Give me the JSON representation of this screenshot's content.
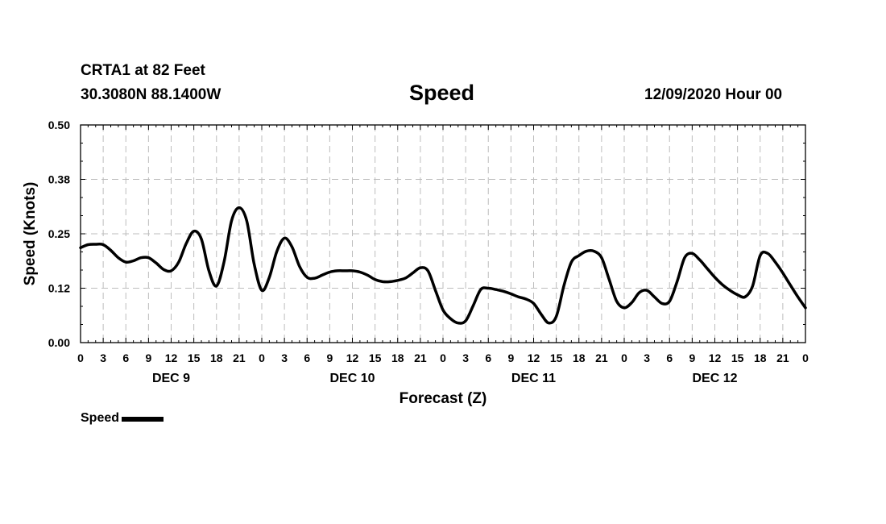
{
  "header": {
    "station": "CRTA1 at 82 Feet",
    "coords": "30.3080N 88.1400W",
    "issued": "12/09/2020 Hour 00"
  },
  "legend": {
    "label": "Speed",
    "color": "#000000"
  },
  "chart_data": {
    "type": "line",
    "title": "Speed",
    "xlabel": "Forecast (Z)",
    "ylabel": "Speed (Knots)",
    "ylim": [
      0,
      0.5
    ],
    "yticks": [
      "0.00",
      "0.12",
      "0.25",
      "0.38",
      "0.50"
    ],
    "xlim": [
      0,
      96
    ],
    "xtick_labels": [
      "0",
      "3",
      "6",
      "9",
      "12",
      "15",
      "18",
      "21",
      "0",
      "3",
      "6",
      "9",
      "12",
      "15",
      "18",
      "21",
      "0",
      "3",
      "6",
      "9",
      "12",
      "15",
      "18",
      "21",
      "0",
      "3",
      "6",
      "9",
      "12",
      "15",
      "18",
      "21",
      "0"
    ],
    "day_labels": [
      {
        "label": "DEC 9",
        "hour": 12
      },
      {
        "label": "DEC 10",
        "hour": 36
      },
      {
        "label": "DEC 11",
        "hour": 60
      },
      {
        "label": "DEC 12",
        "hour": 84
      }
    ],
    "grid": true,
    "series": [
      {
        "name": "Speed",
        "x": [
          0,
          1,
          2,
          3,
          4,
          5,
          6,
          7,
          8,
          9,
          10,
          11,
          12,
          13,
          14,
          15,
          16,
          17,
          18,
          19,
          20,
          21,
          22,
          23,
          24,
          25,
          26,
          27,
          28,
          29,
          30,
          31,
          32,
          33,
          34,
          35,
          36,
          37,
          38,
          39,
          40,
          41,
          42,
          43,
          44,
          45,
          46,
          47,
          48,
          49,
          50,
          51,
          52,
          53,
          54,
          55,
          56,
          57,
          58,
          59,
          60,
          61,
          62,
          63,
          64,
          65,
          66,
          67,
          68,
          69,
          70,
          71,
          72,
          73,
          74,
          75,
          76,
          77,
          78,
          79,
          80,
          81,
          82,
          83,
          84,
          85,
          86,
          87,
          88,
          89,
          90,
          91,
          92,
          93,
          94,
          95,
          96
        ],
        "values": [
          0.218,
          0.225,
          0.226,
          0.225,
          0.212,
          0.195,
          0.185,
          0.188,
          0.195,
          0.195,
          0.183,
          0.168,
          0.165,
          0.185,
          0.228,
          0.256,
          0.238,
          0.165,
          0.13,
          0.185,
          0.28,
          0.31,
          0.28,
          0.18,
          0.12,
          0.15,
          0.21,
          0.24,
          0.22,
          0.175,
          0.15,
          0.148,
          0.155,
          0.162,
          0.165,
          0.165,
          0.165,
          0.162,
          0.155,
          0.145,
          0.14,
          0.14,
          0.143,
          0.148,
          0.16,
          0.172,
          0.165,
          0.12,
          0.075,
          0.055,
          0.045,
          0.05,
          0.085,
          0.122,
          0.125,
          0.122,
          0.118,
          0.112,
          0.105,
          0.1,
          0.09,
          0.065,
          0.045,
          0.06,
          0.13,
          0.185,
          0.2,
          0.21,
          0.21,
          0.195,
          0.145,
          0.095,
          0.08,
          0.092,
          0.115,
          0.12,
          0.105,
          0.09,
          0.095,
          0.14,
          0.195,
          0.205,
          0.19,
          0.17,
          0.15,
          0.133,
          0.12,
          0.11,
          0.105,
          0.13,
          0.2,
          0.205,
          0.185,
          0.16,
          0.132,
          0.105,
          0.08
        ]
      }
    ]
  }
}
